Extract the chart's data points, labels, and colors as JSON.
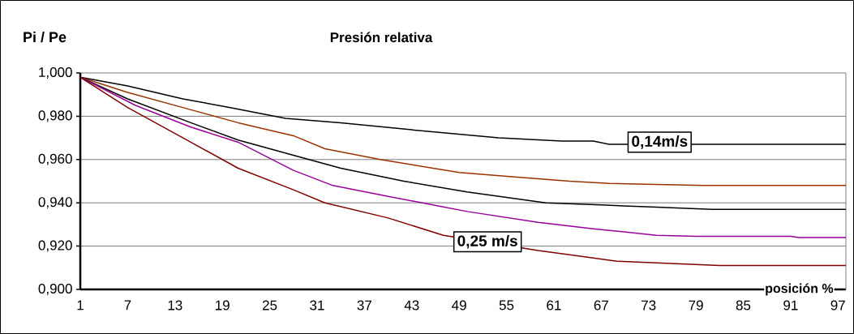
{
  "chart_data": {
    "type": "line",
    "title": "Presión relativa",
    "ylabel": "Pi / Pe",
    "xlabel": "posición %",
    "xlim": [
      1,
      98
    ],
    "xticks": [
      1,
      7,
      13,
      19,
      25,
      31,
      37,
      43,
      49,
      55,
      61,
      67,
      73,
      79,
      85,
      91,
      97
    ],
    "ylim": [
      0.9,
      1.0
    ],
    "yticks": [
      {
        "value": 0.9,
        "label": "0,900"
      },
      {
        "value": 0.92,
        "label": "0,920"
      },
      {
        "value": 0.94,
        "label": "0,940"
      },
      {
        "value": 0.96,
        "label": "0,960"
      },
      {
        "value": 0.98,
        "label": "0,980"
      },
      {
        "value": 1.0,
        "label": "1,000"
      }
    ],
    "grid": "y",
    "series": [
      {
        "color": "#000000",
        "x": [
          1,
          7,
          14,
          20,
          27,
          34,
          45,
          54,
          62,
          66,
          68,
          98
        ],
        "values": [
          0.998,
          0.994,
          0.988,
          0.984,
          0.979,
          0.977,
          0.973,
          0.97,
          0.9685,
          0.9685,
          0.967,
          0.967
        ]
      },
      {
        "color": "#993300",
        "x": [
          1,
          7,
          15,
          21,
          28,
          32,
          39,
          49,
          56,
          63,
          68,
          80,
          98
        ],
        "values": [
          0.998,
          0.991,
          0.983,
          0.977,
          0.971,
          0.965,
          0.96,
          0.954,
          0.952,
          0.95,
          0.949,
          0.948,
          0.948
        ]
      },
      {
        "color": "#000000",
        "x": [
          1,
          7,
          15,
          21,
          28,
          34,
          42,
          50,
          60,
          67,
          74,
          81,
          98
        ],
        "values": [
          0.998,
          0.988,
          0.977,
          0.969,
          0.962,
          0.956,
          0.95,
          0.945,
          0.94,
          0.939,
          0.938,
          0.937,
          0.937
        ]
      },
      {
        "color": "#990099",
        "x": [
          1,
          8,
          15,
          21,
          28,
          33,
          40,
          50,
          59,
          66,
          74,
          79,
          91,
          92,
          98
        ],
        "values": [
          0.998,
          0.985,
          0.975,
          0.968,
          0.955,
          0.948,
          0.943,
          0.936,
          0.931,
          0.928,
          0.925,
          0.9245,
          0.9245,
          0.924,
          0.924
        ]
      },
      {
        "color": "#800000",
        "x": [
          1,
          7,
          15,
          21,
          28,
          32,
          40,
          47,
          59,
          63,
          69,
          82,
          98
        ],
        "values": [
          0.998,
          0.984,
          0.968,
          0.956,
          0.946,
          0.94,
          0.933,
          0.925,
          0.918,
          0.916,
          0.913,
          0.911,
          0.911
        ]
      }
    ],
    "annotations": [
      {
        "text": "0,14m/s",
        "x": 74.4,
        "y": 0.968
      },
      {
        "text": "0,25 m/s",
        "x": 52.6,
        "y": 0.922
      }
    ]
  }
}
